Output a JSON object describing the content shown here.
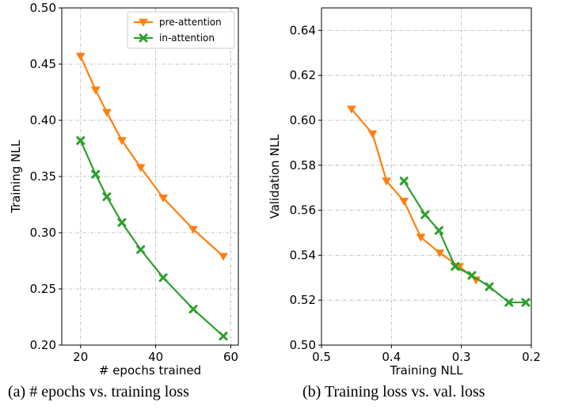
{
  "chart_data": [
    {
      "type": "line",
      "xlabel": "# epochs trained",
      "ylabel": "Training NLL",
      "xlim": [
        15,
        62
      ],
      "ylim": [
        0.2,
        0.5
      ],
      "xticks": [
        20,
        40,
        60
      ],
      "yticks": [
        0.2,
        0.25,
        0.3,
        0.35,
        0.4,
        0.45,
        0.5
      ],
      "ytick_labels": [
        "0.20",
        "0.25",
        "0.30",
        "0.35",
        "0.40",
        "0.45",
        "0.50"
      ],
      "grid": true,
      "legend_position": "top-right",
      "series": [
        {
          "name": "pre-attention",
          "color": "#ff7f0e",
          "marker": "triangle-down",
          "x": [
            20,
            24,
            27,
            31,
            36,
            42,
            50,
            58
          ],
          "y": [
            0.457,
            0.427,
            0.407,
            0.382,
            0.358,
            0.331,
            0.303,
            0.279
          ]
        },
        {
          "name": "in-attention",
          "color": "#2ca02c",
          "marker": "x",
          "x": [
            20,
            24,
            27,
            31,
            36,
            42,
            50,
            58
          ],
          "y": [
            0.382,
            0.352,
            0.332,
            0.309,
            0.285,
            0.26,
            0.232,
            0.208
          ]
        }
      ]
    },
    {
      "type": "line",
      "xlabel": "Training NLL",
      "ylabel": "Validation NLL",
      "xlim": [
        0.5,
        0.2
      ],
      "ylim": [
        0.5,
        0.65
      ],
      "xticks": [
        0.5,
        0.4,
        0.3,
        0.2
      ],
      "xtick_labels": [
        "0.5",
        "0.4",
        "0.3",
        "0.2"
      ],
      "yticks": [
        0.5,
        0.52,
        0.54,
        0.56,
        0.58,
        0.6,
        0.62,
        0.64
      ],
      "ytick_labels": [
        "0.50",
        "0.52",
        "0.54",
        "0.56",
        "0.58",
        "0.60",
        "0.62",
        "0.64"
      ],
      "x_axis_reversed": true,
      "grid": true,
      "series": [
        {
          "color": "#ff7f0e",
          "marker": "triangle-down",
          "x": [
            0.457,
            0.427,
            0.407,
            0.382,
            0.358,
            0.331,
            0.303,
            0.279
          ],
          "y": [
            0.605,
            0.594,
            0.573,
            0.564,
            0.548,
            0.541,
            0.535,
            0.529
          ]
        },
        {
          "color": "#2ca02c",
          "marker": "x",
          "x": [
            0.382,
            0.352,
            0.332,
            0.309,
            0.285,
            0.26,
            0.232,
            0.208
          ],
          "y": [
            0.573,
            0.558,
            0.551,
            0.535,
            0.531,
            0.526,
            0.519,
            0.519
          ]
        }
      ]
    }
  ],
  "captions": {
    "a": "(a) # epochs vs. training loss",
    "b": "(b) Training loss vs. val. loss"
  }
}
